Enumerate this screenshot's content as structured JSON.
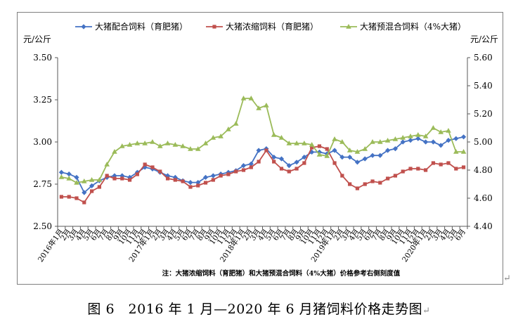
{
  "chart_data": {
    "type": "line",
    "title": "",
    "left_axis_unit": "元/公斤",
    "right_axis_unit": "元/公斤",
    "left_ylim": [
      2.5,
      3.5
    ],
    "left_yticks": [
      "2.50",
      "2.75",
      "3.00",
      "3.25",
      "3.50"
    ],
    "right_ylim": [
      4.4,
      5.6
    ],
    "right_yticks": [
      "4.40",
      "4.60",
      "4.80",
      "5.00",
      "5.20",
      "5.40",
      "5.60"
    ],
    "grid": false,
    "legend_position": "top",
    "x_labels": [
      "2016年1月",
      "2月",
      "3月",
      "4月",
      "5月",
      "6月",
      "7月",
      "8月",
      "9月",
      "10月",
      "11月",
      "12月",
      "2017年1月",
      "2月",
      "3月",
      "4月",
      "5月",
      "6月",
      "7月",
      "8月",
      "9月",
      "10月",
      "11月",
      "12月",
      "2018年1月",
      "2月",
      "3月",
      "4月",
      "5月",
      "6月",
      "7月",
      "8月",
      "9月",
      "10月",
      "11月",
      "12月",
      "2019年1月",
      "2月",
      "3月",
      "4月",
      "5月",
      "6月",
      "7月",
      "8月",
      "9月",
      "10月",
      "11月",
      "12月",
      "2020年1月",
      "2月",
      "3月",
      "4月",
      "5月",
      "6月"
    ],
    "series": [
      {
        "name": "大猪配合饲料（育肥猪）",
        "axis": "left",
        "color": "#4472c4",
        "marker": "diamond",
        "values": [
          2.82,
          2.81,
          2.79,
          2.7,
          2.74,
          2.77,
          2.79,
          2.8,
          2.8,
          2.79,
          2.82,
          2.85,
          2.84,
          2.82,
          2.8,
          2.79,
          2.77,
          2.76,
          2.76,
          2.79,
          2.8,
          2.81,
          2.82,
          2.83,
          2.86,
          2.87,
          2.95,
          2.96,
          2.91,
          2.9,
          2.86,
          2.88,
          2.91,
          2.94,
          2.94,
          2.93,
          2.95,
          2.91,
          2.91,
          2.88,
          2.9,
          2.92,
          2.92,
          2.95,
          2.96,
          3.0,
          3.01,
          3.02,
          3.0,
          3.0,
          2.98,
          3.01,
          3.02,
          3.03
        ]
      },
      {
        "name": "大猪浓缩饲料（育肥猪）",
        "axis": "right",
        "color": "#c0504d",
        "marker": "square",
        "values": [
          4.61,
          4.61,
          4.6,
          4.57,
          4.65,
          4.68,
          4.76,
          4.74,
          4.74,
          4.73,
          4.77,
          4.84,
          4.82,
          4.79,
          4.74,
          4.73,
          4.72,
          4.68,
          4.69,
          4.71,
          4.73,
          4.76,
          4.77,
          4.79,
          4.8,
          4.82,
          4.86,
          4.94,
          4.86,
          4.81,
          4.79,
          4.81,
          4.85,
          4.96,
          4.97,
          4.95,
          4.85,
          4.76,
          4.7,
          4.67,
          4.7,
          4.72,
          4.71,
          4.74,
          4.76,
          4.79,
          4.81,
          4.81,
          4.8,
          4.85,
          4.84,
          4.85,
          4.81,
          4.82
        ]
      },
      {
        "name": "大猪预混合饲料（4%大猪）",
        "axis": "right",
        "color": "#9bbb59",
        "marker": "triangle",
        "values": [
          4.75,
          4.74,
          4.71,
          4.72,
          4.73,
          4.73,
          4.84,
          4.93,
          4.97,
          4.98,
          4.99,
          4.99,
          5.0,
          4.97,
          4.99,
          4.98,
          4.97,
          4.95,
          4.95,
          4.99,
          5.03,
          5.04,
          5.09,
          5.13,
          5.31,
          5.31,
          5.24,
          5.26,
          5.05,
          5.03,
          4.99,
          4.99,
          4.99,
          4.98,
          4.91,
          4.9,
          5.02,
          5.0,
          4.94,
          4.93,
          4.95,
          5.0,
          5.0,
          5.01,
          5.02,
          5.03,
          5.04,
          5.05,
          5.04,
          5.1,
          5.07,
          5.08,
          4.93,
          4.93
        ]
      }
    ],
    "note": "注：大猪浓缩饲料（育肥猪）和大猪预混合饲料（4%大猪）价格参考右侧刻度值"
  },
  "caption": {
    "text": "图 6　2016 年 1 月—2020 年 6 月猪饲料价格走势图",
    "mark": "↵"
  },
  "para_mark": "↵"
}
